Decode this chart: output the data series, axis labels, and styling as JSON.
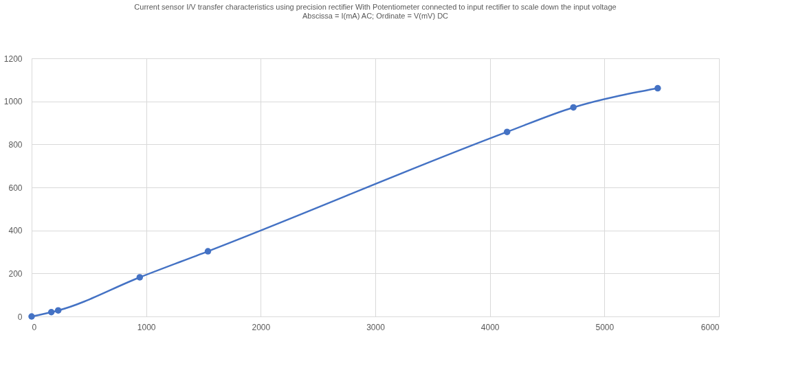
{
  "chart_data": {
    "type": "line",
    "title": [
      "Current sensor I/V transfer characteristics using precision rectifier With Potentiometer connected to input rectifier to scale down the input voltage",
      "Abscissa = I(mA) AC; Ordinate = V(mV) DC"
    ],
    "x": [
      0,
      172,
      232,
      944,
      1539,
      4150,
      4729,
      5465
    ],
    "series": [
      {
        "color": "#4472c4",
        "values": [
          0,
          20,
          28,
          182,
          303,
          858,
          972,
          1061
        ]
      }
    ],
    "xlim": [
      0,
      6000
    ],
    "xticks": [
      0,
      1000,
      2000,
      3000,
      4000,
      5000,
      6000
    ],
    "ylim": [
      0,
      1200
    ],
    "yticks": [
      0,
      200,
      400,
      600,
      800,
      1000,
      1200
    ],
    "grid": true,
    "marker": "circle",
    "line_style": "solid"
  }
}
